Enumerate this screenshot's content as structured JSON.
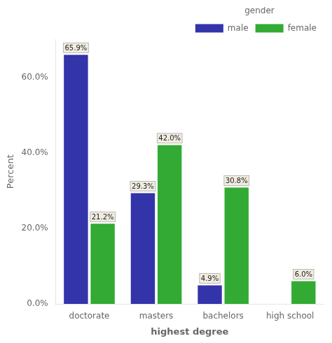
{
  "chart_data": {
    "type": "bar",
    "categories": [
      "doctorate",
      "masters",
      "bachelors",
      "high school"
    ],
    "series": [
      {
        "name": "male",
        "color": "#3333aa",
        "values": [
          65.9,
          29.3,
          4.9,
          0.0
        ],
        "value_labels": [
          "65.9%",
          "29.3%",
          "4.9%",
          null
        ]
      },
      {
        "name": "female",
        "color": "#33aa33",
        "values": [
          21.2,
          42.0,
          30.8,
          6.0
        ],
        "value_labels": [
          "21.2%",
          "42.0%",
          "30.8%",
          "6.0%"
        ]
      }
    ],
    "xlabel": "highest degree",
    "ylabel": "Percent",
    "ylim": [
      0,
      70
    ],
    "yticks": [
      {
        "value": 0,
        "label": "0.0%"
      },
      {
        "value": 20,
        "label": "20.0%"
      },
      {
        "value": 40,
        "label": "40.0%"
      },
      {
        "value": 60,
        "label": "60.0%"
      }
    ],
    "grid": false,
    "legend": "upper right",
    "legend_title": "gender",
    "data_labels": true
  }
}
